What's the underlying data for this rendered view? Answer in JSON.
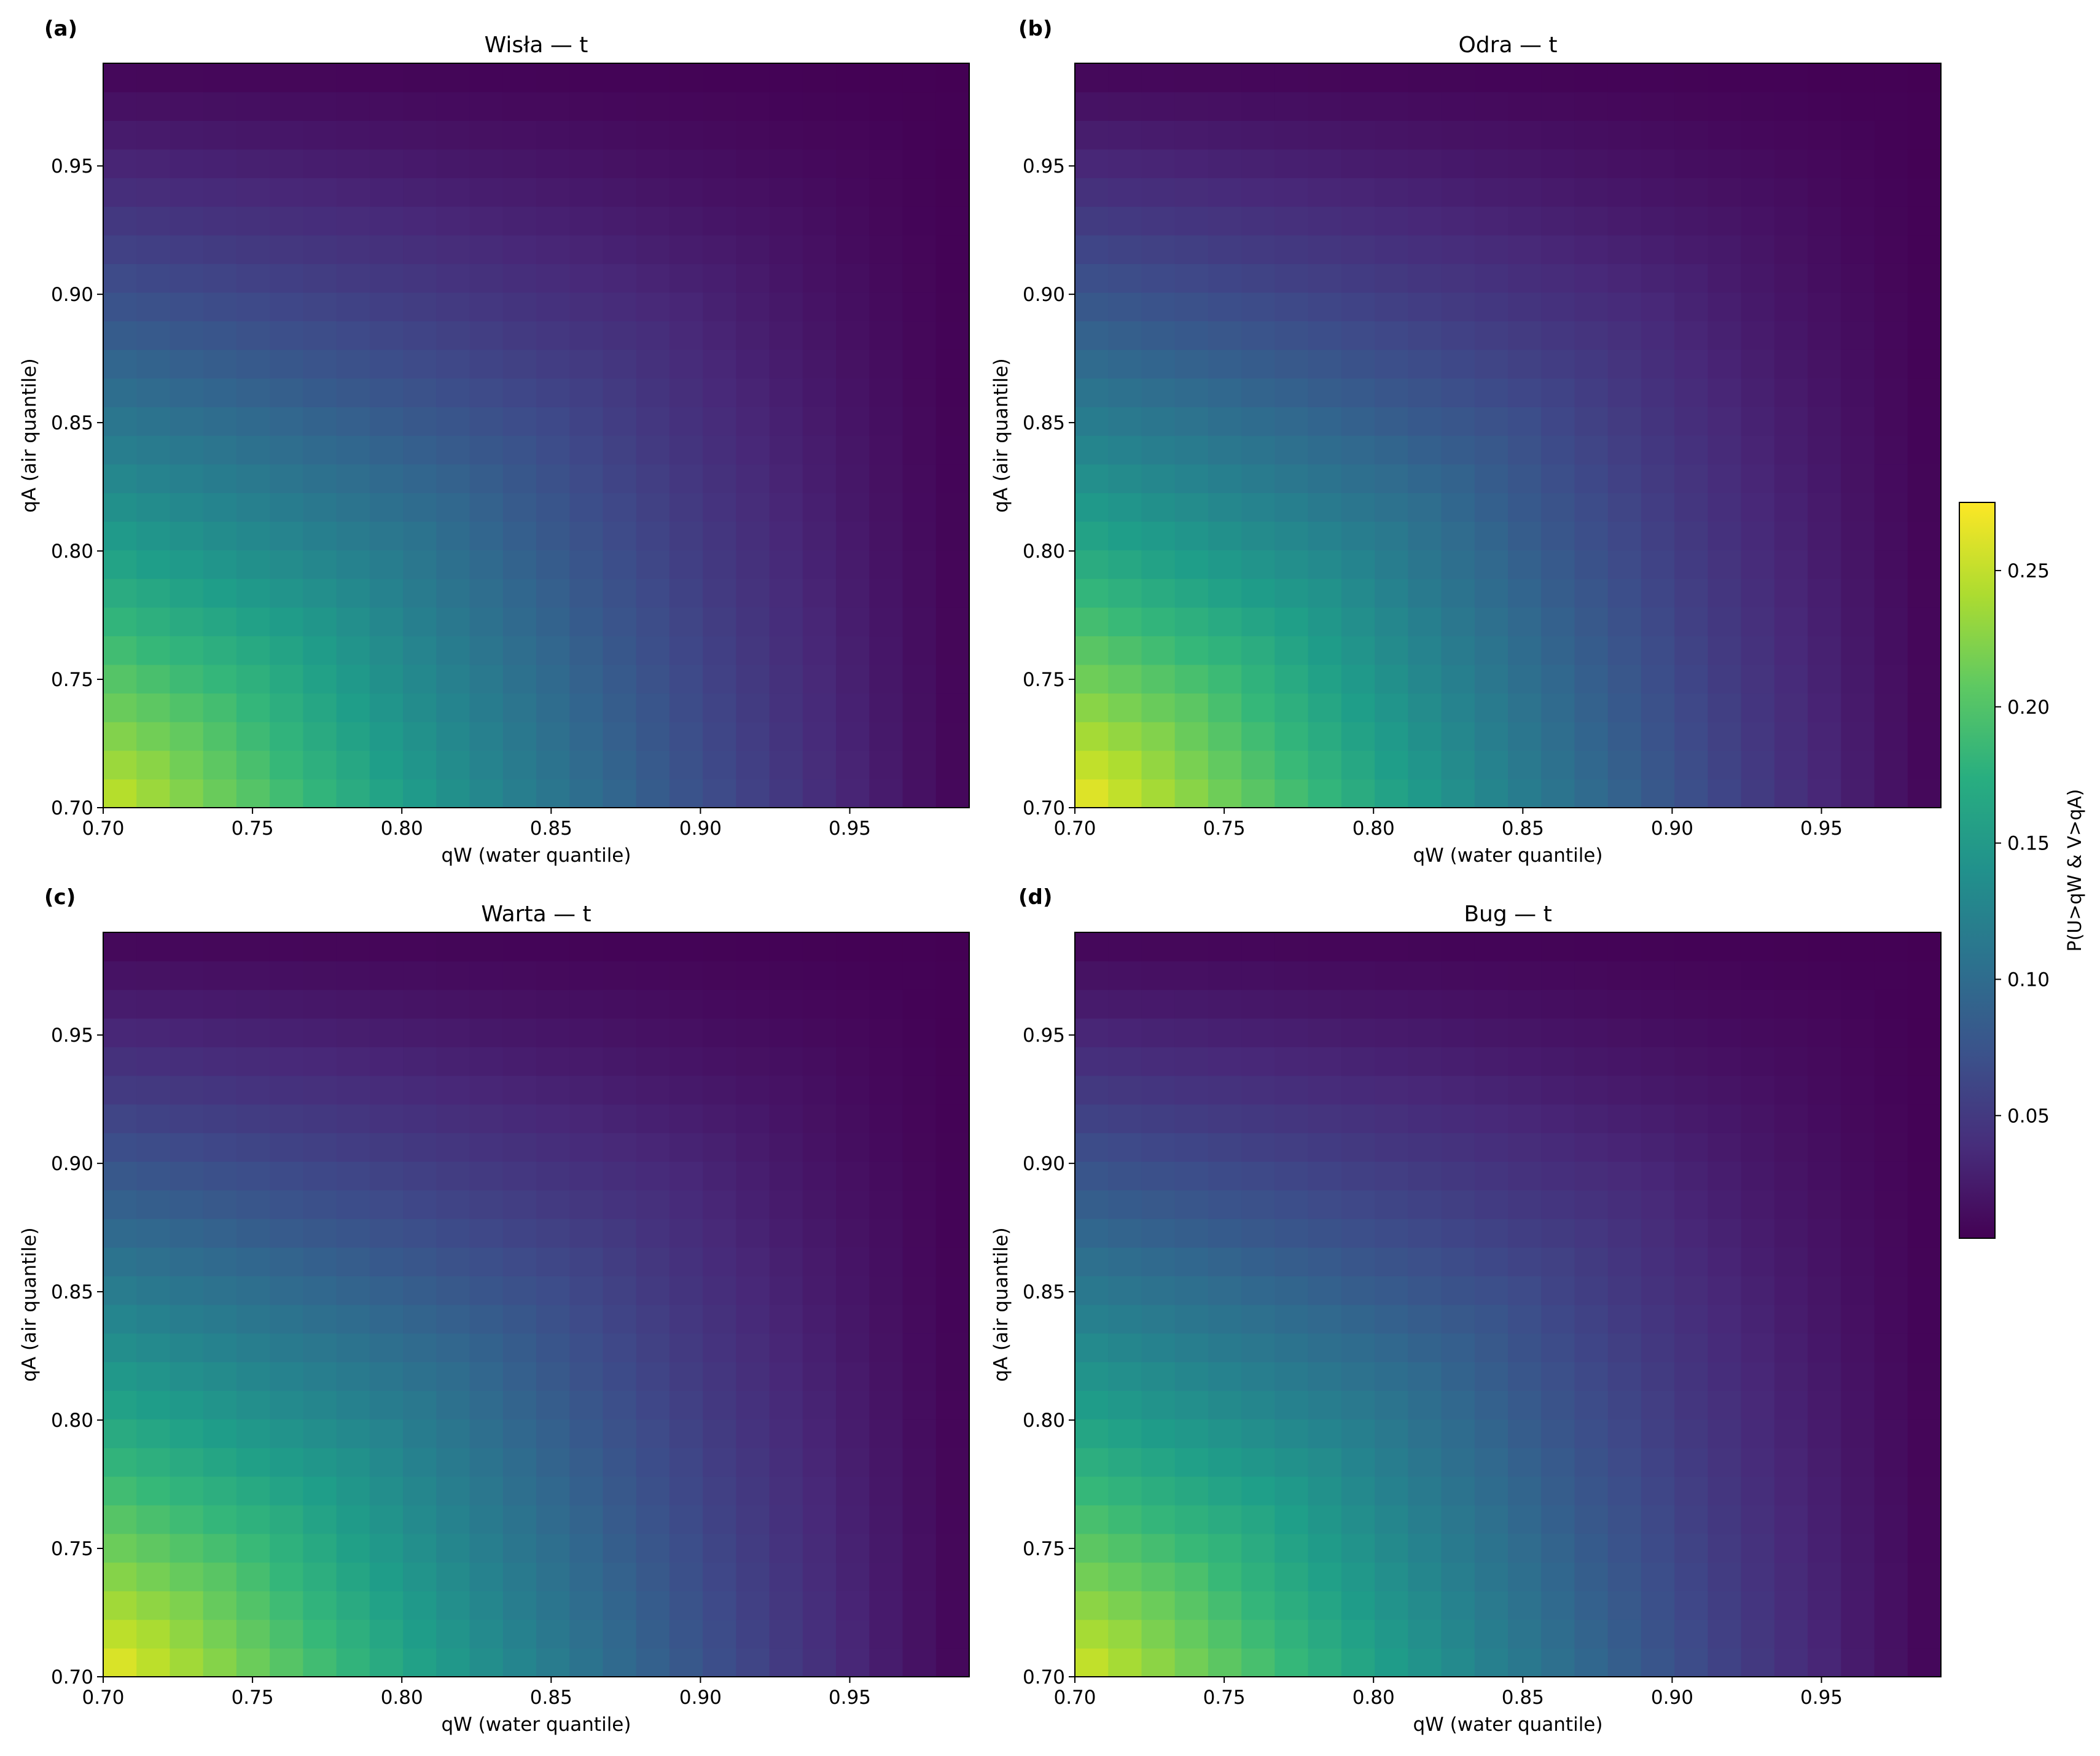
{
  "figure": {
    "colorbar": {
      "label": "P(U>qW & V>qA)",
      "range": [
        0.005,
        0.275
      ],
      "ticks": [
        0.05,
        0.1,
        0.15,
        0.2,
        0.25
      ],
      "tick_labels": [
        "0.05",
        "0.10",
        "0.15",
        "0.20",
        "0.25"
      ],
      "colormap": "viridis"
    }
  },
  "chart_data": [
    {
      "type": "heatmap",
      "panel_label": "(a)",
      "title": "Wisła — t",
      "xlabel": "qW (water quantile)",
      "ylabel": "qA (air quantile)",
      "xlim": [
        0.7,
        0.99
      ],
      "ylim": [
        0.7,
        0.99
      ],
      "x_ticks": [
        "0.70",
        "0.75",
        "0.80",
        "0.85",
        "0.90",
        "0.95"
      ],
      "y_ticks": [
        "0.70",
        "0.75",
        "0.80",
        "0.85",
        "0.90",
        "0.95"
      ],
      "grid_step": 0.011,
      "value_range": [
        0.005,
        0.265
      ],
      "peak_value": 0.255
    },
    {
      "type": "heatmap",
      "panel_label": "(b)",
      "title": "Odra — t",
      "xlabel": "qW (water quantile)",
      "ylabel": "qA (air quantile)",
      "xlim": [
        0.7,
        0.99
      ],
      "ylim": [
        0.7,
        0.99
      ],
      "x_ticks": [
        "0.70",
        "0.75",
        "0.80",
        "0.85",
        "0.90",
        "0.95"
      ],
      "y_ticks": [
        "0.70",
        "0.75",
        "0.80",
        "0.85",
        "0.90",
        "0.95"
      ],
      "grid_step": 0.011,
      "value_range": [
        0.005,
        0.275
      ],
      "peak_value": 0.272
    },
    {
      "type": "heatmap",
      "panel_label": "(c)",
      "title": "Warta — t",
      "xlabel": "qW (water quantile)",
      "ylabel": "qA (air quantile)",
      "xlim": [
        0.7,
        0.99
      ],
      "ylim": [
        0.7,
        0.99
      ],
      "x_ticks": [
        "0.70",
        "0.75",
        "0.80",
        "0.85",
        "0.90",
        "0.95"
      ],
      "y_ticks": [
        "0.70",
        "0.75",
        "0.80",
        "0.85",
        "0.90",
        "0.95"
      ],
      "grid_step": 0.011,
      "value_range": [
        0.005,
        0.275
      ],
      "peak_value": 0.27
    },
    {
      "type": "heatmap",
      "panel_label": "(d)",
      "title": "Bug — t",
      "xlabel": "qW (water quantile)",
      "ylabel": "qA (air quantile)",
      "xlim": [
        0.7,
        0.99
      ],
      "ylim": [
        0.7,
        0.99
      ],
      "x_ticks": [
        "0.70",
        "0.75",
        "0.80",
        "0.85",
        "0.90",
        "0.95"
      ],
      "y_ticks": [
        "0.70",
        "0.75",
        "0.80",
        "0.85",
        "0.90",
        "0.95"
      ],
      "grid_step": 0.011,
      "value_range": [
        0.005,
        0.265
      ],
      "peak_value": 0.26
    }
  ]
}
